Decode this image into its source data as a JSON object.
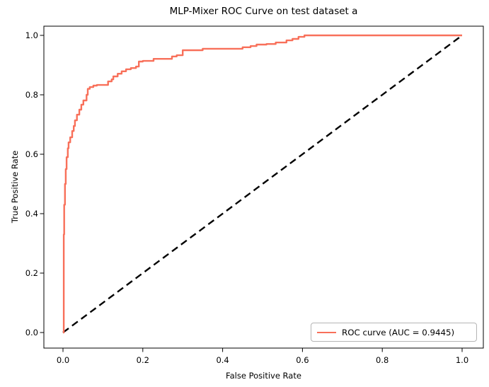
{
  "figure": {
    "background": "#ffffff"
  },
  "chart_data": {
    "type": "line",
    "title": "MLP-Mixer ROC Curve on test dataset a",
    "xlabel": "False Positive Rate",
    "ylabel": "True Positive Rate",
    "xlim": [
      0.0,
      1.0
    ],
    "ylim": [
      0.0,
      1.0
    ],
    "x_ticks": [
      "0.0",
      "0.2",
      "0.4",
      "0.6",
      "0.8",
      "1.0"
    ],
    "y_ticks": [
      "0.0",
      "0.2",
      "0.4",
      "0.6",
      "0.8",
      "1.0"
    ],
    "grid": false,
    "auc": 0.9445,
    "legend": {
      "position": "lower right",
      "entries": [
        {
          "label": "ROC curve (AUC = 0.9445)",
          "color": "#f8705a",
          "style": "solid"
        }
      ]
    },
    "series": [
      {
        "name": "chance-diagonal",
        "color": "#000000",
        "style": "dashed",
        "points": [
          [
            0.0,
            0.0
          ],
          [
            1.0,
            1.0
          ]
        ]
      },
      {
        "name": "ROC curve (AUC = 0.9445)",
        "color": "#f8705a",
        "style": "solid",
        "points": [
          [
            0.0,
            0.0
          ],
          [
            0.002,
            0.0
          ],
          [
            0.002,
            0.33
          ],
          [
            0.003,
            0.33
          ],
          [
            0.003,
            0.43
          ],
          [
            0.005,
            0.43
          ],
          [
            0.005,
            0.5
          ],
          [
            0.007,
            0.5
          ],
          [
            0.007,
            0.55
          ],
          [
            0.009,
            0.55
          ],
          [
            0.009,
            0.59
          ],
          [
            0.012,
            0.59
          ],
          [
            0.012,
            0.62
          ],
          [
            0.014,
            0.62
          ],
          [
            0.014,
            0.64
          ],
          [
            0.018,
            0.64
          ],
          [
            0.018,
            0.657
          ],
          [
            0.023,
            0.657
          ],
          [
            0.023,
            0.678
          ],
          [
            0.027,
            0.678
          ],
          [
            0.027,
            0.695
          ],
          [
            0.03,
            0.695
          ],
          [
            0.03,
            0.714
          ],
          [
            0.035,
            0.714
          ],
          [
            0.035,
            0.733
          ],
          [
            0.041,
            0.733
          ],
          [
            0.041,
            0.75
          ],
          [
            0.046,
            0.75
          ],
          [
            0.046,
            0.767
          ],
          [
            0.051,
            0.767
          ],
          [
            0.051,
            0.781
          ],
          [
            0.059,
            0.781
          ],
          [
            0.059,
            0.8
          ],
          [
            0.062,
            0.8
          ],
          [
            0.062,
            0.82
          ],
          [
            0.067,
            0.82
          ],
          [
            0.067,
            0.826
          ],
          [
            0.076,
            0.826
          ],
          [
            0.076,
            0.831
          ],
          [
            0.085,
            0.831
          ],
          [
            0.085,
            0.833
          ],
          [
            0.113,
            0.833
          ],
          [
            0.113,
            0.845
          ],
          [
            0.122,
            0.845
          ],
          [
            0.122,
            0.852
          ],
          [
            0.126,
            0.852
          ],
          [
            0.126,
            0.862
          ],
          [
            0.137,
            0.862
          ],
          [
            0.137,
            0.871
          ],
          [
            0.147,
            0.871
          ],
          [
            0.147,
            0.879
          ],
          [
            0.158,
            0.879
          ],
          [
            0.158,
            0.886
          ],
          [
            0.17,
            0.886
          ],
          [
            0.17,
            0.89
          ],
          [
            0.183,
            0.89
          ],
          [
            0.183,
            0.895
          ],
          [
            0.19,
            0.895
          ],
          [
            0.19,
            0.912
          ],
          [
            0.2,
            0.912
          ],
          [
            0.2,
            0.914
          ],
          [
            0.227,
            0.914
          ],
          [
            0.227,
            0.921
          ],
          [
            0.273,
            0.921
          ],
          [
            0.273,
            0.929
          ],
          [
            0.285,
            0.929
          ],
          [
            0.285,
            0.933
          ],
          [
            0.3,
            0.933
          ],
          [
            0.3,
            0.95
          ],
          [
            0.35,
            0.95
          ],
          [
            0.35,
            0.955
          ],
          [
            0.45,
            0.955
          ],
          [
            0.45,
            0.96
          ],
          [
            0.47,
            0.96
          ],
          [
            0.47,
            0.964
          ],
          [
            0.485,
            0.964
          ],
          [
            0.485,
            0.969
          ],
          [
            0.51,
            0.969
          ],
          [
            0.51,
            0.971
          ],
          [
            0.533,
            0.971
          ],
          [
            0.533,
            0.976
          ],
          [
            0.56,
            0.976
          ],
          [
            0.56,
            0.983
          ],
          [
            0.575,
            0.983
          ],
          [
            0.575,
            0.988
          ],
          [
            0.59,
            0.988
          ],
          [
            0.59,
            0.995
          ],
          [
            0.605,
            0.995
          ],
          [
            0.605,
            1.0
          ],
          [
            1.0,
            1.0
          ]
        ]
      }
    ]
  },
  "colors": {
    "roc_line": "#f8705a",
    "diagonal_line": "#000000",
    "axes_frame": "#000000",
    "legend_border": "#b5b5b5",
    "background": "#ffffff"
  }
}
